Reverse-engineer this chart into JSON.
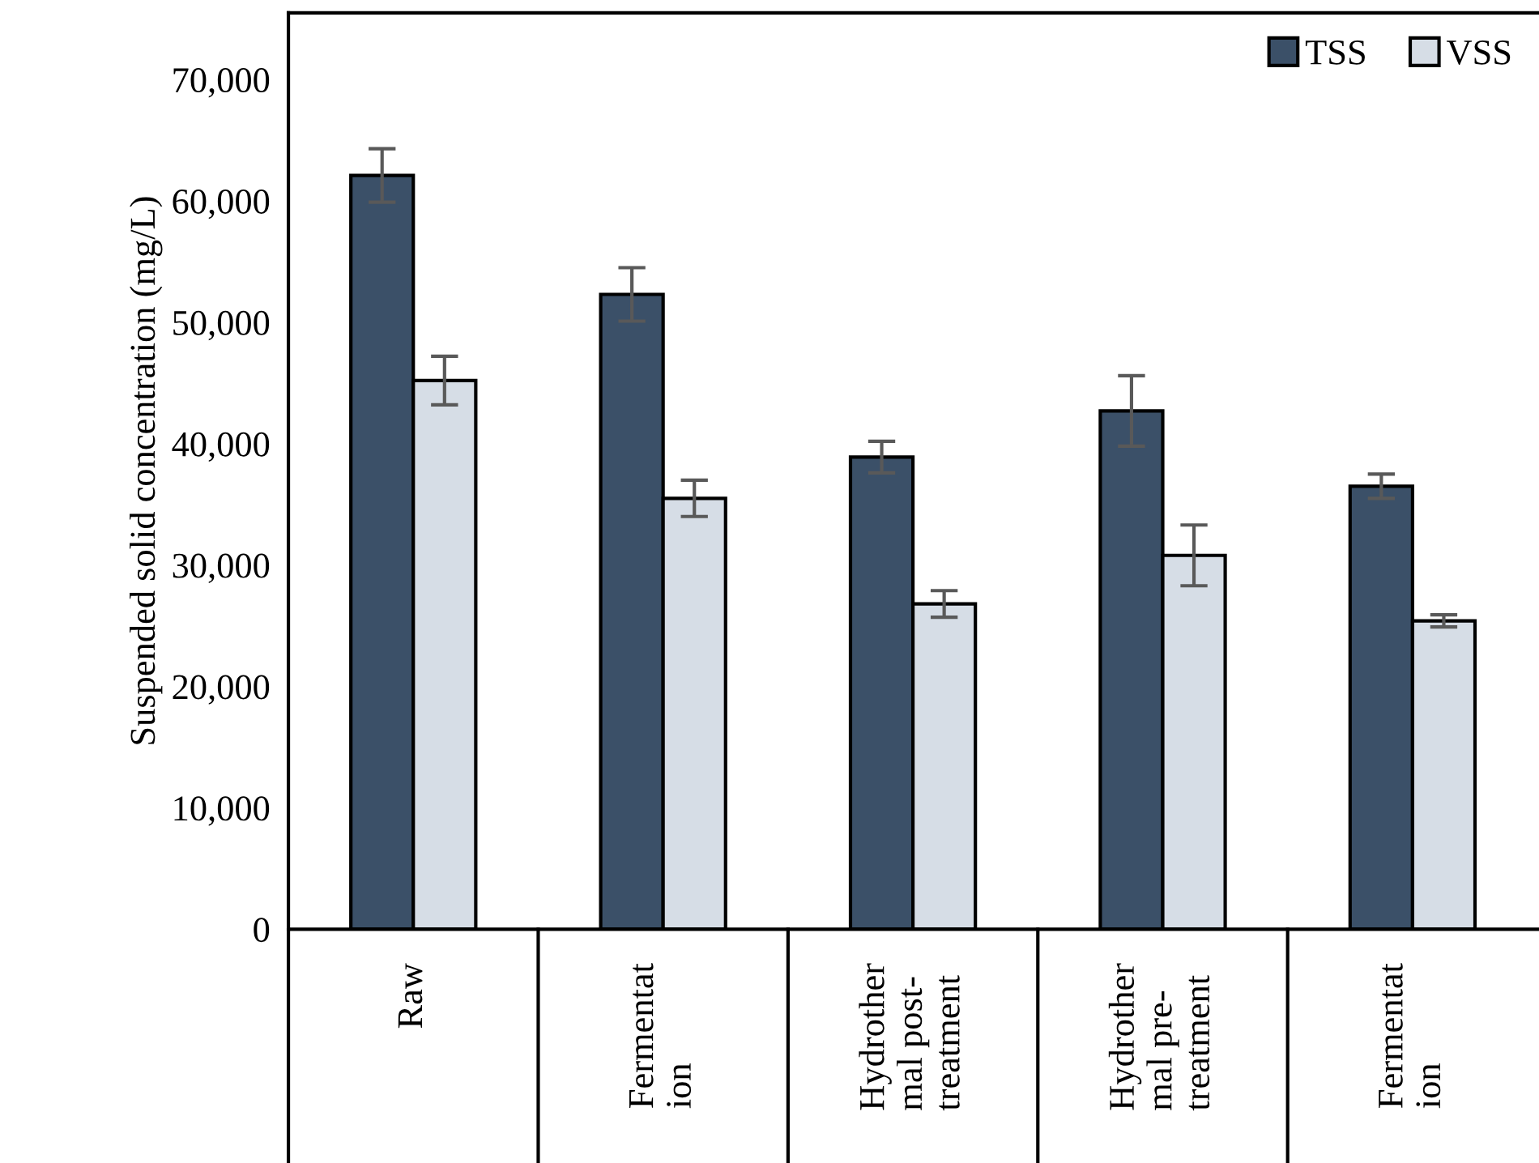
{
  "chart_data": {
    "type": "bar",
    "ylabel": "Suspended solid concentration (mg/L)",
    "categories": [
      "Raw",
      "Fermentation",
      "Hydrothermal post-treatment",
      "Hydrothermal pre-treatment",
      "Fermentation"
    ],
    "series": [
      {
        "name": "TSS",
        "color": "#3b5068",
        "values": [
          62100,
          52300,
          38900,
          42700,
          36500
        ],
        "errors": [
          2200,
          2200,
          1300,
          2900,
          1000
        ]
      },
      {
        "name": "VSS",
        "color": "#d6dde6",
        "values": [
          45200,
          35500,
          26800,
          30800,
          25400
        ],
        "errors": [
          2000,
          1500,
          1100,
          2500,
          500
        ]
      }
    ],
    "ylim": [
      0,
      75500
    ],
    "yticks": [
      {
        "value": 0,
        "label": "0"
      },
      {
        "value": 10000,
        "label": "10,000"
      },
      {
        "value": 20000,
        "label": "20,000"
      },
      {
        "value": 30000,
        "label": "30,000"
      },
      {
        "value": 40000,
        "label": "40,000"
      },
      {
        "value": 50000,
        "label": "50,000"
      },
      {
        "value": 60000,
        "label": "60,000"
      },
      {
        "value": 70000,
        "label": "70,000"
      }
    ],
    "grid": false,
    "legend": "top right"
  }
}
